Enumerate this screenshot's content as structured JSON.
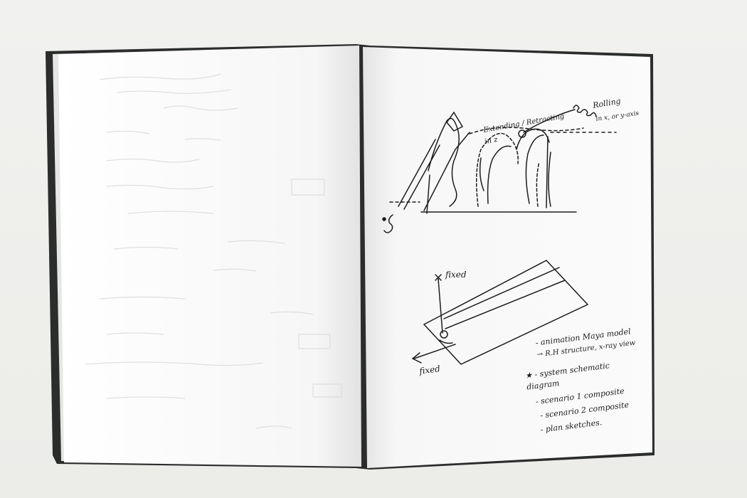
{
  "photo": {
    "subject": "open-sketchbook"
  },
  "left_page": {
    "content": "faint-show-through"
  },
  "right_page": {
    "top_sketch": {
      "label_rolling": "Rolling",
      "label_rolling_axes": "in x, or y-axis",
      "label_extending": "Extending / Retracting",
      "label_extending_axis": "in z"
    },
    "bottom_sketch": {
      "label_fixed_top": "fixed",
      "label_fixed_bottom": "fixed"
    },
    "notes": [
      "- animation Maya model",
      "  → R.H structure, x-ray view",
      "★ - system schematic",
      "   diagram",
      "- scenario 1 composite",
      "- scenario 2 composite",
      "- plan sketches."
    ]
  },
  "colors": {
    "background": "#efefed",
    "cover": "#2a2d2c",
    "paper": "#fafafa",
    "ink": "#1c1c1c"
  }
}
